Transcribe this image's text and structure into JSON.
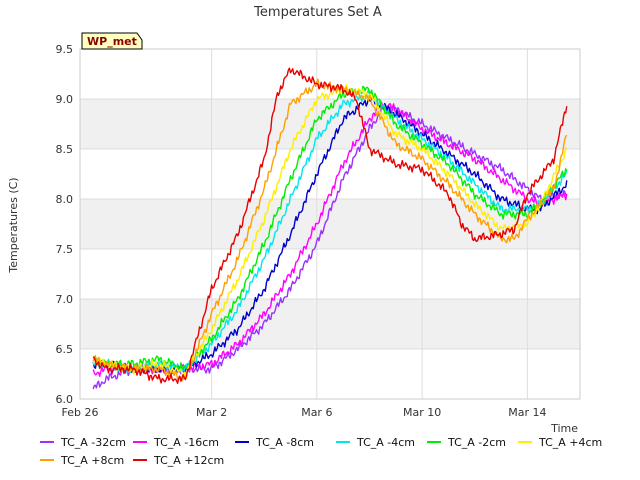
{
  "chart_data": {
    "type": "line",
    "title": "Temperatures Set A",
    "xlabel": "Time",
    "ylabel": "Temperatures (C)",
    "badge": "WP_met",
    "ylim": [
      6.0,
      9.5
    ],
    "yticks": [
      6.0,
      6.5,
      7.0,
      7.5,
      8.0,
      8.5,
      9.0,
      9.5
    ],
    "xlim": [
      "2020-02-26",
      "2020-03-16"
    ],
    "xticks": [
      {
        "date": "2020-02-26",
        "label": "Feb 26"
      },
      {
        "date": "2020-03-02",
        "label": "Mar 2"
      },
      {
        "date": "2020-03-06",
        "label": "Mar 6"
      },
      {
        "date": "2020-03-10",
        "label": "Mar 10"
      },
      {
        "date": "2020-03-14",
        "label": "Mar 14"
      }
    ],
    "grid": true,
    "legend_placement": "bottom",
    "series": [
      {
        "name": "TC_A -32cm",
        "color": "#9b30ff",
        "points": [
          [
            "2020-02-26T12:00",
            6.1
          ],
          [
            "2020-02-27T00:00",
            6.2
          ],
          [
            "2020-02-28T00:00",
            6.3
          ],
          [
            "2020-02-29T00:00",
            6.3
          ],
          [
            "2020-03-01T00:00",
            6.3
          ],
          [
            "2020-03-02T00:00",
            6.3
          ],
          [
            "2020-03-03T00:00",
            6.5
          ],
          [
            "2020-03-04T00:00",
            6.75
          ],
          [
            "2020-03-05T00:00",
            7.1
          ],
          [
            "2020-03-06T00:00",
            7.55
          ],
          [
            "2020-03-07T00:00",
            8.2
          ],
          [
            "2020-03-08T00:00",
            8.7
          ],
          [
            "2020-03-08T12:00",
            8.9
          ],
          [
            "2020-03-09T00:00",
            8.9
          ],
          [
            "2020-03-10T00:00",
            8.75
          ],
          [
            "2020-03-11T00:00",
            8.6
          ],
          [
            "2020-03-12T00:00",
            8.45
          ],
          [
            "2020-03-13T00:00",
            8.3
          ],
          [
            "2020-03-14T00:00",
            8.1
          ],
          [
            "2020-03-14T12:00",
            8.0
          ],
          [
            "2020-03-15T12:00",
            8.05
          ]
        ]
      },
      {
        "name": "TC_A -16cm",
        "color": "#ff00ff",
        "points": [
          [
            "2020-02-26T12:00",
            6.25
          ],
          [
            "2020-02-27T00:00",
            6.3
          ],
          [
            "2020-02-28T00:00",
            6.3
          ],
          [
            "2020-02-29T00:00",
            6.3
          ],
          [
            "2020-03-01T00:00",
            6.3
          ],
          [
            "2020-03-02T00:00",
            6.35
          ],
          [
            "2020-03-03T00:00",
            6.55
          ],
          [
            "2020-03-04T00:00",
            6.85
          ],
          [
            "2020-03-05T00:00",
            7.25
          ],
          [
            "2020-03-06T00:00",
            7.75
          ],
          [
            "2020-03-07T00:00",
            8.35
          ],
          [
            "2020-03-08T00:00",
            8.8
          ],
          [
            "2020-03-08T12:00",
            8.95
          ],
          [
            "2020-03-09T00:00",
            8.9
          ],
          [
            "2020-03-10T00:00",
            8.7
          ],
          [
            "2020-03-11T00:00",
            8.55
          ],
          [
            "2020-03-12T00:00",
            8.4
          ],
          [
            "2020-03-13T00:00",
            8.2
          ],
          [
            "2020-03-14T00:00",
            8.0
          ],
          [
            "2020-03-14T12:00",
            7.95
          ],
          [
            "2020-03-15T12:00",
            8.05
          ]
        ]
      },
      {
        "name": "TC_A -8cm",
        "color": "#0000cd",
        "points": [
          [
            "2020-02-26T12:00",
            6.35
          ],
          [
            "2020-02-27T00:00",
            6.35
          ],
          [
            "2020-02-28T00:00",
            6.3
          ],
          [
            "2020-02-29T00:00",
            6.3
          ],
          [
            "2020-03-01T00:00",
            6.3
          ],
          [
            "2020-03-02T00:00",
            6.45
          ],
          [
            "2020-03-03T00:00",
            6.7
          ],
          [
            "2020-03-04T00:00",
            7.1
          ],
          [
            "2020-03-05T00:00",
            7.65
          ],
          [
            "2020-03-06T00:00",
            8.25
          ],
          [
            "2020-03-07T00:00",
            8.8
          ],
          [
            "2020-03-08T00:00",
            9.0
          ],
          [
            "2020-03-09T00:00",
            8.85
          ],
          [
            "2020-03-10T00:00",
            8.65
          ],
          [
            "2020-03-11T00:00",
            8.45
          ],
          [
            "2020-03-12T00:00",
            8.25
          ],
          [
            "2020-03-13T00:00",
            8.0
          ],
          [
            "2020-03-14T00:00",
            7.9
          ],
          [
            "2020-03-14T12:00",
            7.9
          ],
          [
            "2020-03-15T12:00",
            8.15
          ]
        ]
      },
      {
        "name": "TC_A -4cm",
        "color": "#00e5ee",
        "points": [
          [
            "2020-02-26T12:00",
            6.35
          ],
          [
            "2020-02-27T00:00",
            6.35
          ],
          [
            "2020-02-28T00:00",
            6.3
          ],
          [
            "2020-02-29T00:00",
            6.35
          ],
          [
            "2020-03-01T00:00",
            6.3
          ],
          [
            "2020-03-02T00:00",
            6.55
          ],
          [
            "2020-03-03T00:00",
            6.9
          ],
          [
            "2020-03-04T00:00",
            7.4
          ],
          [
            "2020-03-05T00:00",
            8.0
          ],
          [
            "2020-03-06T00:00",
            8.6
          ],
          [
            "2020-03-07T00:00",
            8.95
          ],
          [
            "2020-03-08T00:00",
            9.05
          ],
          [
            "2020-03-09T00:00",
            8.8
          ],
          [
            "2020-03-10T00:00",
            8.6
          ],
          [
            "2020-03-11T00:00",
            8.4
          ],
          [
            "2020-03-12T00:00",
            8.15
          ],
          [
            "2020-03-13T00:00",
            7.9
          ],
          [
            "2020-03-14T00:00",
            7.9
          ],
          [
            "2020-03-14T12:00",
            7.95
          ],
          [
            "2020-03-15T12:00",
            8.25
          ]
        ]
      },
      {
        "name": "TC_A -2cm",
        "color": "#00ee00",
        "points": [
          [
            "2020-02-26T12:00",
            6.4
          ],
          [
            "2020-02-27T00:00",
            6.35
          ],
          [
            "2020-02-28T00:00",
            6.35
          ],
          [
            "2020-02-29T00:00",
            6.4
          ],
          [
            "2020-03-01T00:00",
            6.3
          ],
          [
            "2020-03-02T00:00",
            6.6
          ],
          [
            "2020-03-03T00:00",
            7.0
          ],
          [
            "2020-03-04T00:00",
            7.55
          ],
          [
            "2020-03-05T00:00",
            8.2
          ],
          [
            "2020-03-06T00:00",
            8.8
          ],
          [
            "2020-03-07T00:00",
            9.05
          ],
          [
            "2020-03-08T00:00",
            9.1
          ],
          [
            "2020-03-09T00:00",
            8.75
          ],
          [
            "2020-03-10T00:00",
            8.55
          ],
          [
            "2020-03-11T00:00",
            8.35
          ],
          [
            "2020-03-12T00:00",
            8.05
          ],
          [
            "2020-03-13T00:00",
            7.85
          ],
          [
            "2020-03-14T00:00",
            7.85
          ],
          [
            "2020-03-14T12:00",
            7.95
          ],
          [
            "2020-03-15T12:00",
            8.3
          ]
        ]
      },
      {
        "name": "TC_A +4cm",
        "color": "#ffee00",
        "points": [
          [
            "2020-02-26T12:00",
            6.4
          ],
          [
            "2020-02-27T00:00",
            6.35
          ],
          [
            "2020-02-28T00:00",
            6.3
          ],
          [
            "2020-02-29T00:00",
            6.35
          ],
          [
            "2020-03-01T00:00",
            6.25
          ],
          [
            "2020-03-02T00:00",
            6.7
          ],
          [
            "2020-03-03T00:00",
            7.2
          ],
          [
            "2020-03-04T00:00",
            7.8
          ],
          [
            "2020-03-05T00:00",
            8.5
          ],
          [
            "2020-03-06T00:00",
            9.0
          ],
          [
            "2020-03-07T00:00",
            9.1
          ],
          [
            "2020-03-08T00:00",
            9.05
          ],
          [
            "2020-03-09T00:00",
            8.65
          ],
          [
            "2020-03-10T00:00",
            8.5
          ],
          [
            "2020-03-11T00:00",
            8.25
          ],
          [
            "2020-03-12T00:00",
            7.95
          ],
          [
            "2020-03-13T00:00",
            7.7
          ],
          [
            "2020-03-14T00:00",
            7.75
          ],
          [
            "2020-03-14T12:00",
            7.95
          ],
          [
            "2020-03-15T12:00",
            8.5
          ]
        ]
      },
      {
        "name": "TC_A +8cm",
        "color": "#ff9f00",
        "points": [
          [
            "2020-02-26T12:00",
            6.4
          ],
          [
            "2020-02-27T00:00",
            6.35
          ],
          [
            "2020-02-28T00:00",
            6.3
          ],
          [
            "2020-02-29T00:00",
            6.3
          ],
          [
            "2020-03-01T00:00",
            6.2
          ],
          [
            "2020-03-02T00:00",
            6.85
          ],
          [
            "2020-03-03T00:00",
            7.4
          ],
          [
            "2020-03-04T00:00",
            8.1
          ],
          [
            "2020-03-05T00:00",
            8.95
          ],
          [
            "2020-03-06T00:00",
            9.15
          ],
          [
            "2020-03-07T00:00",
            9.1
          ],
          [
            "2020-03-08T00:00",
            9.0
          ],
          [
            "2020-03-09T00:00",
            8.55
          ],
          [
            "2020-03-10T00:00",
            8.4
          ],
          [
            "2020-03-11T00:00",
            8.15
          ],
          [
            "2020-03-12T00:00",
            7.85
          ],
          [
            "2020-03-13T00:00",
            7.6
          ],
          [
            "2020-03-13T12:00",
            7.6
          ],
          [
            "2020-03-14T00:00",
            7.8
          ],
          [
            "2020-03-15T00:00",
            8.1
          ],
          [
            "2020-03-15T12:00",
            8.65
          ]
        ]
      },
      {
        "name": "TC_A +12cm",
        "color": "#e60000",
        "points": [
          [
            "2020-02-26T12:00",
            6.4
          ],
          [
            "2020-02-27T00:00",
            6.3
          ],
          [
            "2020-02-28T00:00",
            6.3
          ],
          [
            "2020-02-29T00:00",
            6.2
          ],
          [
            "2020-03-01T00:00",
            6.2
          ],
          [
            "2020-03-02T00:00",
            7.1
          ],
          [
            "2020-03-03T00:00",
            7.65
          ],
          [
            "2020-03-04T00:00",
            8.4
          ],
          [
            "2020-03-04T12:00",
            9.05
          ],
          [
            "2020-03-05T00:00",
            9.3
          ],
          [
            "2020-03-06T00:00",
            9.15
          ],
          [
            "2020-03-07T00:00",
            9.1
          ],
          [
            "2020-03-07T12:00",
            9.0
          ],
          [
            "2020-03-08T00:00",
            8.5
          ],
          [
            "2020-03-09T00:00",
            8.35
          ],
          [
            "2020-03-10T00:00",
            8.3
          ],
          [
            "2020-03-11T00:00",
            8.05
          ],
          [
            "2020-03-11T12:00",
            7.75
          ],
          [
            "2020-03-12T00:00",
            7.6
          ],
          [
            "2020-03-13T00:00",
            7.65
          ],
          [
            "2020-03-13T12:00",
            7.7
          ],
          [
            "2020-03-14T00:00",
            8.05
          ],
          [
            "2020-03-15T00:00",
            8.4
          ],
          [
            "2020-03-15T12:00",
            8.95
          ]
        ]
      }
    ]
  }
}
